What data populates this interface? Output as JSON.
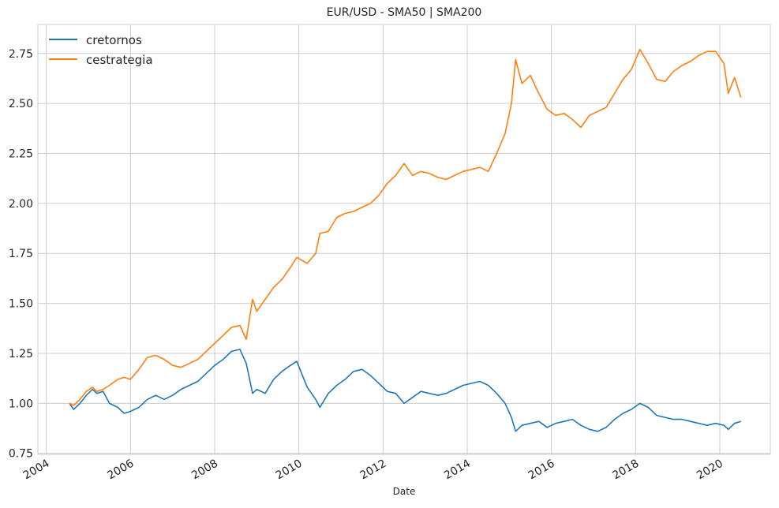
{
  "chart_data": {
    "type": "line",
    "title": "EUR/USD - SMA50 | SMA200",
    "xlabel": "Date",
    "ylabel": "",
    "xlim": [
      2003.8,
      2021.2
    ],
    "ylim": [
      0.745,
      2.895
    ],
    "x_ticks": [
      2004,
      2006,
      2008,
      2010,
      2012,
      2014,
      2016,
      2018,
      2020
    ],
    "x_tick_labels": [
      "2004",
      "2006",
      "2008",
      "2010",
      "2012",
      "2014",
      "2016",
      "2018",
      "2020"
    ],
    "y_ticks": [
      0.75,
      1.0,
      1.25,
      1.5,
      1.75,
      2.0,
      2.25,
      2.5,
      2.75
    ],
    "y_tick_labels": [
      "0.75",
      "1.00",
      "1.25",
      "1.50",
      "1.75",
      "2.00",
      "2.25",
      "2.50",
      "2.75"
    ],
    "grid": true,
    "legend_position": "top-left",
    "series": [
      {
        "name": "cretornos",
        "color": "#1f77b4",
        "points": [
          [
            2004.55,
            1.0
          ],
          [
            2004.65,
            0.97
          ],
          [
            2004.8,
            1.0
          ],
          [
            2004.95,
            1.04
          ],
          [
            2005.1,
            1.07
          ],
          [
            2005.2,
            1.05
          ],
          [
            2005.35,
            1.06
          ],
          [
            2005.5,
            1.0
          ],
          [
            2005.7,
            0.98
          ],
          [
            2005.85,
            0.95
          ],
          [
            2006.0,
            0.96
          ],
          [
            2006.2,
            0.98
          ],
          [
            2006.4,
            1.02
          ],
          [
            2006.6,
            1.04
          ],
          [
            2006.8,
            1.02
          ],
          [
            2007.0,
            1.04
          ],
          [
            2007.2,
            1.07
          ],
          [
            2007.4,
            1.09
          ],
          [
            2007.6,
            1.11
          ],
          [
            2007.8,
            1.15
          ],
          [
            2008.0,
            1.19
          ],
          [
            2008.2,
            1.22
          ],
          [
            2008.4,
            1.26
          ],
          [
            2008.6,
            1.27
          ],
          [
            2008.75,
            1.2
          ],
          [
            2008.9,
            1.05
          ],
          [
            2009.0,
            1.07
          ],
          [
            2009.2,
            1.05
          ],
          [
            2009.4,
            1.12
          ],
          [
            2009.6,
            1.16
          ],
          [
            2009.8,
            1.19
          ],
          [
            2009.95,
            1.21
          ],
          [
            2010.2,
            1.08
          ],
          [
            2010.4,
            1.02
          ],
          [
            2010.5,
            0.98
          ],
          [
            2010.7,
            1.05
          ],
          [
            2010.9,
            1.09
          ],
          [
            2011.1,
            1.12
          ],
          [
            2011.3,
            1.16
          ],
          [
            2011.5,
            1.17
          ],
          [
            2011.7,
            1.14
          ],
          [
            2011.9,
            1.1
          ],
          [
            2012.1,
            1.06
          ],
          [
            2012.3,
            1.05
          ],
          [
            2012.5,
            1.0
          ],
          [
            2012.7,
            1.03
          ],
          [
            2012.9,
            1.06
          ],
          [
            2013.1,
            1.05
          ],
          [
            2013.3,
            1.04
          ],
          [
            2013.5,
            1.05
          ],
          [
            2013.7,
            1.07
          ],
          [
            2013.9,
            1.09
          ],
          [
            2014.1,
            1.1
          ],
          [
            2014.3,
            1.11
          ],
          [
            2014.5,
            1.09
          ],
          [
            2014.7,
            1.05
          ],
          [
            2014.9,
            1.0
          ],
          [
            2015.05,
            0.93
          ],
          [
            2015.15,
            0.86
          ],
          [
            2015.3,
            0.89
          ],
          [
            2015.5,
            0.9
          ],
          [
            2015.7,
            0.91
          ],
          [
            2015.9,
            0.88
          ],
          [
            2016.1,
            0.9
          ],
          [
            2016.3,
            0.91
          ],
          [
            2016.5,
            0.92
          ],
          [
            2016.7,
            0.89
          ],
          [
            2016.9,
            0.87
          ],
          [
            2017.1,
            0.86
          ],
          [
            2017.3,
            0.88
          ],
          [
            2017.5,
            0.92
          ],
          [
            2017.7,
            0.95
          ],
          [
            2017.9,
            0.97
          ],
          [
            2018.1,
            1.0
          ],
          [
            2018.3,
            0.98
          ],
          [
            2018.5,
            0.94
          ],
          [
            2018.7,
            0.93
          ],
          [
            2018.9,
            0.92
          ],
          [
            2019.1,
            0.92
          ],
          [
            2019.3,
            0.91
          ],
          [
            2019.5,
            0.9
          ],
          [
            2019.7,
            0.89
          ],
          [
            2019.9,
            0.9
          ],
          [
            2020.1,
            0.89
          ],
          [
            2020.2,
            0.87
          ],
          [
            2020.35,
            0.9
          ],
          [
            2020.5,
            0.91
          ]
        ]
      },
      {
        "name": "cestrategia",
        "color": "#ff7f0e",
        "points": [
          [
            2004.55,
            1.0
          ],
          [
            2004.65,
            0.99
          ],
          [
            2004.8,
            1.02
          ],
          [
            2004.95,
            1.06
          ],
          [
            2005.1,
            1.08
          ],
          [
            2005.2,
            1.06
          ],
          [
            2005.35,
            1.07
          ],
          [
            2005.5,
            1.09
          ],
          [
            2005.7,
            1.12
          ],
          [
            2005.85,
            1.13
          ],
          [
            2006.0,
            1.12
          ],
          [
            2006.2,
            1.17
          ],
          [
            2006.4,
            1.23
          ],
          [
            2006.6,
            1.24
          ],
          [
            2006.8,
            1.22
          ],
          [
            2007.0,
            1.19
          ],
          [
            2007.2,
            1.18
          ],
          [
            2007.4,
            1.2
          ],
          [
            2007.6,
            1.22
          ],
          [
            2007.8,
            1.26
          ],
          [
            2008.0,
            1.3
          ],
          [
            2008.2,
            1.34
          ],
          [
            2008.4,
            1.38
          ],
          [
            2008.6,
            1.39
          ],
          [
            2008.75,
            1.32
          ],
          [
            2008.9,
            1.52
          ],
          [
            2009.0,
            1.46
          ],
          [
            2009.2,
            1.52
          ],
          [
            2009.4,
            1.58
          ],
          [
            2009.6,
            1.62
          ],
          [
            2009.8,
            1.68
          ],
          [
            2009.95,
            1.73
          ],
          [
            2010.2,
            1.7
          ],
          [
            2010.4,
            1.75
          ],
          [
            2010.5,
            1.85
          ],
          [
            2010.7,
            1.86
          ],
          [
            2010.9,
            1.93
          ],
          [
            2011.1,
            1.95
          ],
          [
            2011.3,
            1.96
          ],
          [
            2011.5,
            1.98
          ],
          [
            2011.7,
            2.0
          ],
          [
            2011.9,
            2.04
          ],
          [
            2012.1,
            2.1
          ],
          [
            2012.3,
            2.14
          ],
          [
            2012.5,
            2.2
          ],
          [
            2012.7,
            2.14
          ],
          [
            2012.9,
            2.16
          ],
          [
            2013.1,
            2.15
          ],
          [
            2013.3,
            2.13
          ],
          [
            2013.5,
            2.12
          ],
          [
            2013.7,
            2.14
          ],
          [
            2013.9,
            2.16
          ],
          [
            2014.1,
            2.17
          ],
          [
            2014.3,
            2.18
          ],
          [
            2014.5,
            2.16
          ],
          [
            2014.7,
            2.25
          ],
          [
            2014.9,
            2.35
          ],
          [
            2015.05,
            2.5
          ],
          [
            2015.15,
            2.72
          ],
          [
            2015.3,
            2.6
          ],
          [
            2015.5,
            2.64
          ],
          [
            2015.7,
            2.55
          ],
          [
            2015.9,
            2.47
          ],
          [
            2016.1,
            2.44
          ],
          [
            2016.3,
            2.45
          ],
          [
            2016.5,
            2.42
          ],
          [
            2016.7,
            2.38
          ],
          [
            2016.9,
            2.44
          ],
          [
            2017.1,
            2.46
          ],
          [
            2017.3,
            2.48
          ],
          [
            2017.5,
            2.55
          ],
          [
            2017.7,
            2.62
          ],
          [
            2017.9,
            2.67
          ],
          [
            2018.1,
            2.77
          ],
          [
            2018.3,
            2.7
          ],
          [
            2018.5,
            2.62
          ],
          [
            2018.7,
            2.61
          ],
          [
            2018.9,
            2.66
          ],
          [
            2019.1,
            2.69
          ],
          [
            2019.3,
            2.71
          ],
          [
            2019.5,
            2.74
          ],
          [
            2019.7,
            2.76
          ],
          [
            2019.9,
            2.76
          ],
          [
            2020.1,
            2.7
          ],
          [
            2020.2,
            2.55
          ],
          [
            2020.35,
            2.63
          ],
          [
            2020.5,
            2.53
          ]
        ]
      }
    ]
  }
}
